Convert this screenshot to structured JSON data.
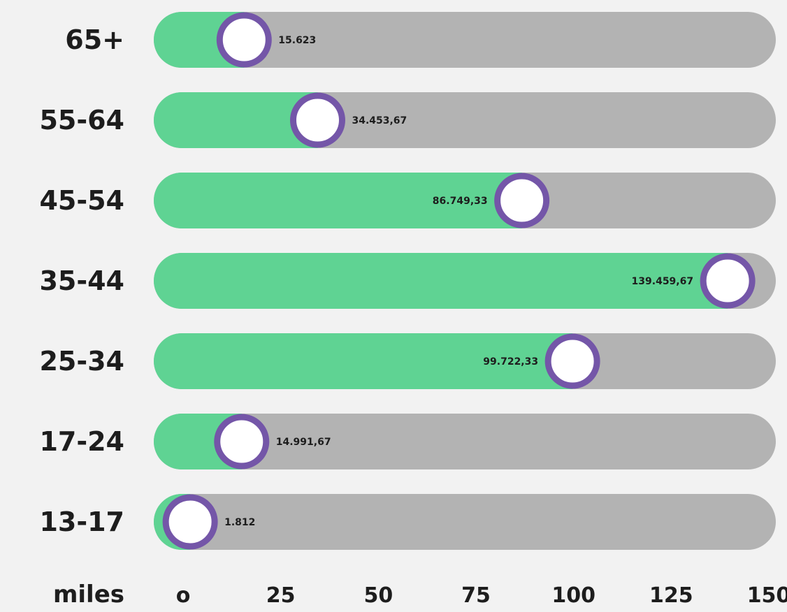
{
  "chart_data": {
    "type": "bar",
    "orientation": "horizontal",
    "categories": [
      "65+",
      "55-64",
      "45-54",
      "35-44",
      "25-34",
      "17-24",
      "13-17"
    ],
    "values": [
      15.623,
      34.45367,
      86.74933,
      139.45967,
      99.72233,
      14.99167,
      1.812
    ],
    "value_labels": [
      "15.623",
      "34.453,67",
      "86.749,33",
      "139.459,67",
      "99.722,33",
      "14.991,67",
      "1.812"
    ],
    "xlabel": "miles",
    "xlim": [
      0,
      150
    ],
    "xticks": [
      0,
      25,
      50,
      75,
      100,
      125,
      150
    ],
    "xtick_labels": [
      "o",
      "25",
      "50",
      "75",
      "100",
      "125",
      "150"
    ],
    "grid": false,
    "legend": "none",
    "colors": {
      "fill": "#5fd393",
      "track": "#b3b3b3",
      "marker_ring": "#7456a8",
      "marker_center": "#ffffff",
      "background": "#f2f2f2",
      "text": "#1d1d1d"
    }
  }
}
